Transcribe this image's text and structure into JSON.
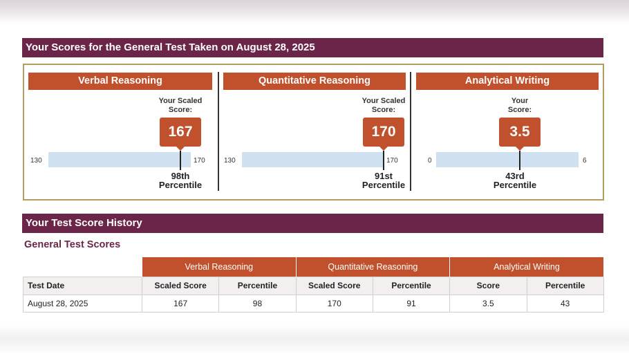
{
  "scores_section": {
    "title": "Your Scores for the General Test Taken on August 28, 2025",
    "panels": [
      {
        "name": "Verbal Reasoning",
        "caption_line1": "Your Scaled",
        "caption_line2": "Score:",
        "score": "167",
        "scale_min": "130",
        "scale_max": "170",
        "percentile_line1": "98th",
        "percentile_line2": "Percentile",
        "score_value": 167,
        "range": [
          130,
          170
        ]
      },
      {
        "name": "Quantitative Reasoning",
        "caption_line1": "Your Scaled",
        "caption_line2": "Score:",
        "score": "170",
        "scale_min": "130",
        "scale_max": "170",
        "percentile_line1": "91st",
        "percentile_line2": "Percentile",
        "score_value": 170,
        "range": [
          130,
          170
        ]
      },
      {
        "name": "Analytical Writing",
        "caption_line1": "Your",
        "caption_line2": "Score:",
        "score": "3.5",
        "scale_min": "0",
        "scale_max": "6",
        "percentile_line1": "43rd",
        "percentile_line2": "Percentile",
        "score_value": 3.5,
        "range": [
          0,
          6
        ]
      }
    ]
  },
  "history_section": {
    "title": "Your Test Score History",
    "subtitle": "General Test Scores",
    "groups": [
      "Verbal Reasoning",
      "Quantitative Reasoning",
      "Analytical Writing"
    ],
    "headers": [
      "Test Date",
      "Scaled Score",
      "Percentile",
      "Scaled Score",
      "Percentile",
      "Score",
      "Percentile"
    ],
    "rows": [
      [
        "August 28, 2025",
        "167",
        "98",
        "170",
        "91",
        "3.5",
        "43"
      ]
    ]
  },
  "colors": {
    "header_bar": "#6b2548",
    "accent": "#c1502d",
    "scale_bar": "#cfe0f1",
    "box_border": "#b59a62"
  }
}
